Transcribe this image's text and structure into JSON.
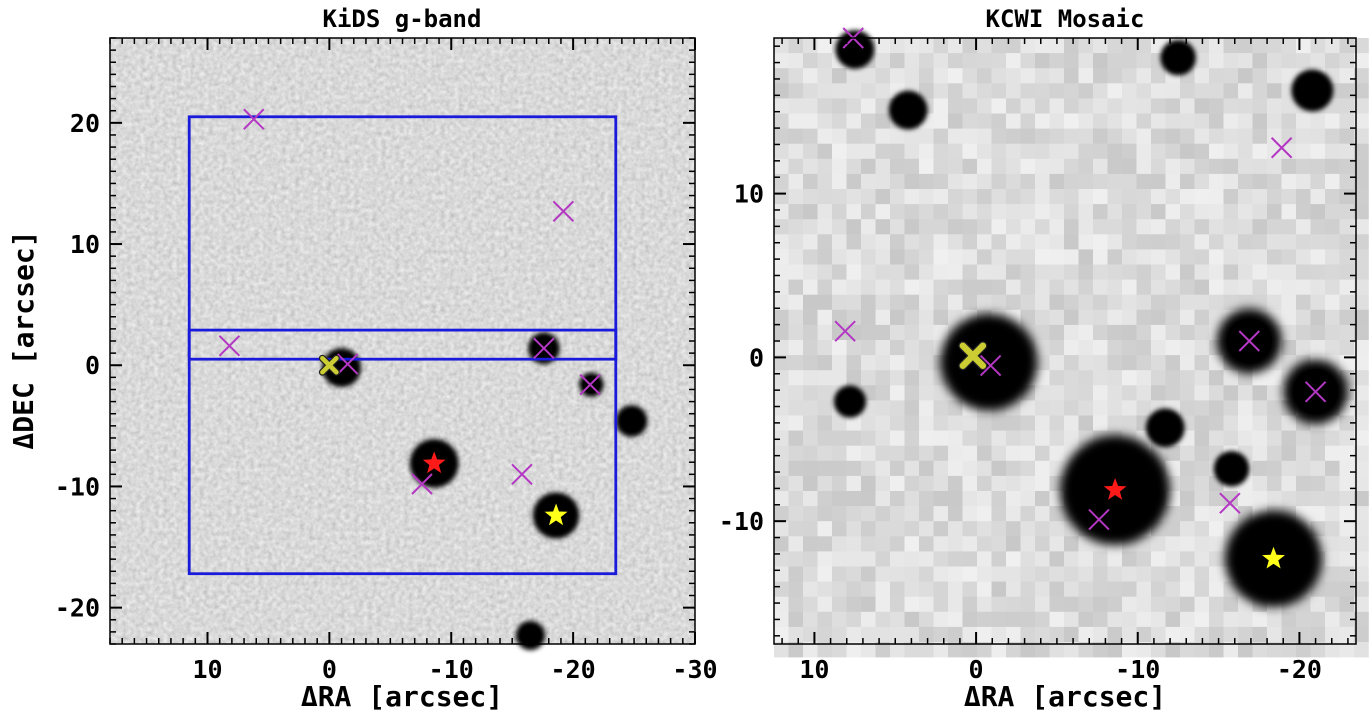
{
  "figure": {
    "ylabel": "ΔDEC [arcsec]",
    "colors": {
      "fov_box": "#1a1adb",
      "cross": "#b437c4",
      "primary_marker": "#cccc33",
      "star_red": "#ff1a1a",
      "star_yellow": "#ffff1a"
    }
  },
  "chart_data": [
    {
      "type": "scatter",
      "title": "KiDS g-band",
      "xlabel": "ΔRA [arcsec]",
      "ylabel": "ΔDEC [arcsec]",
      "xlim": [
        18,
        -30
      ],
      "ylim": [
        -23,
        27
      ],
      "xticks": [
        10,
        0,
        -10,
        -20,
        -30
      ],
      "yticks": [
        20,
        10,
        0,
        -10,
        -20
      ],
      "background": "grayscale noise image",
      "fov_boxes": [
        {
          "x0": 11.5,
          "x1": -23.5,
          "y0": -17.2,
          "y1": 20.5
        },
        {
          "x0": 11.5,
          "x1": -23.5,
          "y0": 0.5,
          "y1": 2.9
        }
      ],
      "sources": [
        {
          "x": -1,
          "y": -0.2,
          "size": 1.6
        },
        {
          "x": -17.6,
          "y": 1.4,
          "size": 1.3
        },
        {
          "x": -21.5,
          "y": -1.6,
          "size": 1.0
        },
        {
          "x": -8.6,
          "y": -8.1,
          "size": 2.0
        },
        {
          "x": -18.6,
          "y": -12.4,
          "size": 1.9
        },
        {
          "x": -24.8,
          "y": -4.6,
          "size": 1.3
        },
        {
          "x": -16.5,
          "y": -22.3,
          "size": 1.2
        }
      ],
      "crosses": [
        {
          "x": 6.2,
          "y": 20.3
        },
        {
          "x": -19.2,
          "y": 12.7
        },
        {
          "x": 8.2,
          "y": 1.6
        },
        {
          "x": -1.5,
          "y": 0.1
        },
        {
          "x": -17.6,
          "y": 1.4
        },
        {
          "x": -21.4,
          "y": -1.6
        },
        {
          "x": -15.8,
          "y": -9.0
        },
        {
          "x": -7.6,
          "y": -9.8
        }
      ],
      "primary_marker": {
        "x": 0,
        "y": 0
      },
      "stars": [
        {
          "x": -8.6,
          "y": -8.1,
          "color": "red"
        },
        {
          "x": -18.6,
          "y": -12.4,
          "color": "yellow"
        }
      ]
    },
    {
      "type": "scatter",
      "title": "KCWI Mosaic",
      "xlabel": "ΔRA [arcsec]",
      "xlim": [
        12.5,
        -23.5
      ],
      "ylim": [
        -17.5,
        19.5
      ],
      "xticks": [
        10,
        0,
        -10,
        -20
      ],
      "yticks": [
        10,
        0,
        -10
      ],
      "background": "pixelated grayscale mosaic",
      "sources": [
        {
          "x": -0.8,
          "y": -0.3,
          "size": 3.0
        },
        {
          "x": -16.9,
          "y": 1.0,
          "size": 2.0
        },
        {
          "x": -21.0,
          "y": -2.1,
          "size": 2.0
        },
        {
          "x": -8.6,
          "y": -8.1,
          "size": 3.4
        },
        {
          "x": -18.4,
          "y": -12.3,
          "size": 3.0
        },
        {
          "x": -20.8,
          "y": 16.3,
          "size": 1.3
        },
        {
          "x": -12.5,
          "y": 18.3,
          "size": 1.1
        },
        {
          "x": 7.5,
          "y": 18.8,
          "size": 1.2
        },
        {
          "x": 4.2,
          "y": 15.1,
          "size": 1.2
        },
        {
          "x": -11.7,
          "y": -4.3,
          "size": 1.2
        },
        {
          "x": -15.8,
          "y": -6.8,
          "size": 1.1
        },
        {
          "x": 7.8,
          "y": -2.7,
          "size": 1.0
        }
      ],
      "crosses": [
        {
          "x": 7.6,
          "y": 19.5
        },
        {
          "x": -18.9,
          "y": 12.8
        },
        {
          "x": 8.1,
          "y": 1.6
        },
        {
          "x": -0.9,
          "y": -0.5
        },
        {
          "x": -16.9,
          "y": 1.0
        },
        {
          "x": -21.0,
          "y": -2.1
        },
        {
          "x": -15.7,
          "y": -8.9
        },
        {
          "x": -7.6,
          "y": -9.9
        }
      ],
      "primary_marker": {
        "x": 0.2,
        "y": 0.1
      },
      "stars": [
        {
          "x": -8.6,
          "y": -8.1,
          "color": "red"
        },
        {
          "x": -18.4,
          "y": -12.3,
          "color": "yellow"
        }
      ]
    }
  ]
}
